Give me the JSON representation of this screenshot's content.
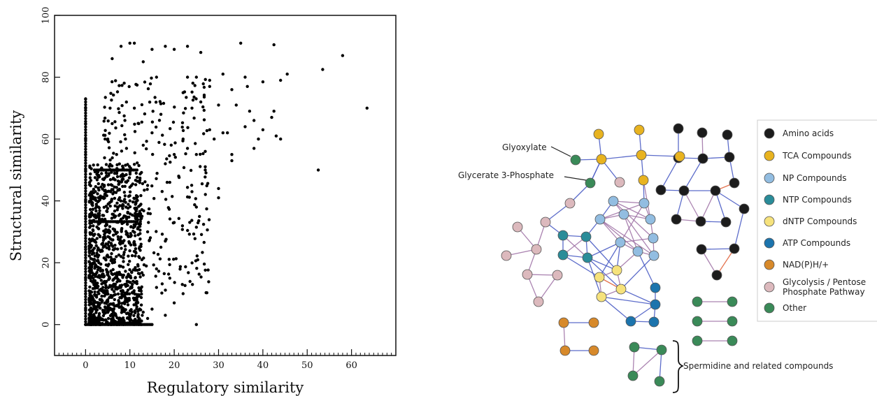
{
  "chart_data": [
    {
      "type": "scatter",
      "xlabel": "Regulatory similarity",
      "ylabel": "Structural similarity",
      "xlim": [
        -7,
        70
      ],
      "ylim": [
        -10,
        100
      ],
      "xticks": [
        0,
        10,
        20,
        30,
        40,
        50,
        60
      ],
      "yticks": [
        0,
        20,
        40,
        60,
        80,
        100
      ],
      "xtick_labels": [
        "0",
        "10",
        "20",
        "30",
        "40",
        "50",
        "60"
      ],
      "ytick_labels": [
        "0",
        "20",
        "40",
        "60",
        "80",
        "100"
      ],
      "point_color": "#000000",
      "grid": false,
      "sample_points": [
        [
          0,
          0
        ],
        [
          0,
          5
        ],
        [
          0,
          10
        ],
        [
          0,
          15
        ],
        [
          0,
          20
        ],
        [
          0,
          25
        ],
        [
          0,
          30
        ],
        [
          0,
          35
        ],
        [
          0,
          40
        ],
        [
          0,
          45
        ],
        [
          0,
          50
        ],
        [
          0,
          55
        ],
        [
          0,
          60
        ],
        [
          0,
          65
        ],
        [
          0,
          70
        ],
        [
          0,
          73
        ],
        [
          1,
          2
        ],
        [
          2,
          6
        ],
        [
          3,
          10
        ],
        [
          4,
          4
        ],
        [
          5,
          8
        ],
        [
          6,
          3
        ],
        [
          3,
          20
        ],
        [
          4,
          25
        ],
        [
          5,
          30
        ],
        [
          2,
          35
        ],
        [
          3,
          40
        ],
        [
          6,
          45
        ],
        [
          4,
          50
        ],
        [
          7,
          15
        ],
        [
          8,
          22
        ],
        [
          9,
          35
        ],
        [
          5,
          60
        ],
        [
          6,
          65
        ],
        [
          7,
          55
        ],
        [
          8,
          48
        ],
        [
          9,
          60
        ],
        [
          10,
          40
        ],
        [
          10,
          50
        ],
        [
          11,
          70
        ],
        [
          12,
          65
        ],
        [
          13,
          58
        ],
        [
          14,
          45
        ],
        [
          15,
          62
        ],
        [
          16,
          80
        ],
        [
          17,
          68
        ],
        [
          8,
          90
        ],
        [
          10,
          91
        ],
        [
          11,
          91
        ],
        [
          15,
          89
        ],
        [
          18,
          90
        ],
        [
          20,
          89
        ],
        [
          23,
          90
        ],
        [
          26,
          88
        ],
        [
          35,
          91
        ],
        [
          42.5,
          90.5
        ],
        [
          6,
          86
        ],
        [
          13,
          85
        ],
        [
          58,
          87
        ],
        [
          53.5,
          82.5
        ],
        [
          63.5,
          70
        ],
        [
          45.5,
          81
        ],
        [
          44,
          79
        ],
        [
          40,
          78.5
        ],
        [
          36,
          80
        ],
        [
          36.5,
          77
        ],
        [
          33,
          76
        ],
        [
          31,
          81
        ],
        [
          28,
          79
        ],
        [
          28,
          77
        ],
        [
          25,
          80
        ],
        [
          23,
          80
        ],
        [
          22,
          75
        ],
        [
          24,
          70
        ],
        [
          26,
          72
        ],
        [
          30,
          71
        ],
        [
          34,
          71
        ],
        [
          37,
          69
        ],
        [
          42.5,
          69
        ],
        [
          42,
          67
        ],
        [
          38,
          66
        ],
        [
          36,
          64
        ],
        [
          40,
          63
        ],
        [
          43,
          61
        ],
        [
          44,
          60
        ],
        [
          39,
          60
        ],
        [
          32,
          62
        ],
        [
          31,
          62
        ],
        [
          29,
          60
        ],
        [
          28,
          63
        ],
        [
          27,
          56
        ],
        [
          25,
          55
        ],
        [
          23,
          57
        ],
        [
          22,
          60
        ],
        [
          20,
          55
        ],
        [
          18,
          52
        ],
        [
          21,
          48
        ],
        [
          19,
          46
        ],
        [
          24,
          43
        ],
        [
          27,
          50
        ],
        [
          30,
          44
        ],
        [
          30,
          41
        ],
        [
          33,
          55
        ],
        [
          33,
          53
        ],
        [
          38,
          57
        ],
        [
          52.5,
          50
        ],
        [
          25,
          38
        ],
        [
          25,
          31.5
        ],
        [
          20,
          33
        ],
        [
          18,
          27
        ],
        [
          17,
          25
        ],
        [
          16,
          18
        ],
        [
          19,
          15
        ],
        [
          22,
          10
        ],
        [
          20,
          7
        ],
        [
          15,
          5
        ],
        [
          18,
          3
        ],
        [
          25,
          0
        ],
        [
          15,
          0
        ],
        [
          12,
          0
        ],
        [
          14,
          2
        ],
        [
          16,
          12
        ],
        [
          13,
          16
        ],
        [
          12,
          22
        ],
        [
          14,
          30
        ],
        [
          11,
          8
        ],
        [
          13,
          4
        ]
      ]
    },
    {
      "type": "network",
      "legend": [
        {
          "label": "Amino acids",
          "color": "#1c1c1c"
        },
        {
          "label": "TCA Compounds",
          "color": "#e8b320"
        },
        {
          "label": "NP Compounds",
          "color": "#92bde1"
        },
        {
          "label": "NTP Compounds",
          "color": "#2a8c99"
        },
        {
          "label": "dNTP Compounds",
          "color": "#f6e27c"
        },
        {
          "label": "ATP Compounds",
          "color": "#1c74ad"
        },
        {
          "label": "NAD(P)H/+",
          "color": "#d7892a"
        },
        {
          "label": "Glycolysis / Pentose",
          "label2": "Phosphate Pathway",
          "color": "#dcb9bd"
        },
        {
          "label": "Other",
          "color": "#3a8a58"
        }
      ],
      "annotations": {
        "glyoxylate": "Glyoxylate",
        "glycerate": "Glycerate 3-Phosphate",
        "spermidine": "Spermidine and related compounds"
      },
      "edge_colors": {
        "primary": "#4a5cc4",
        "secondary": "#a277a8",
        "highlight": "#e1643c"
      }
    }
  ]
}
